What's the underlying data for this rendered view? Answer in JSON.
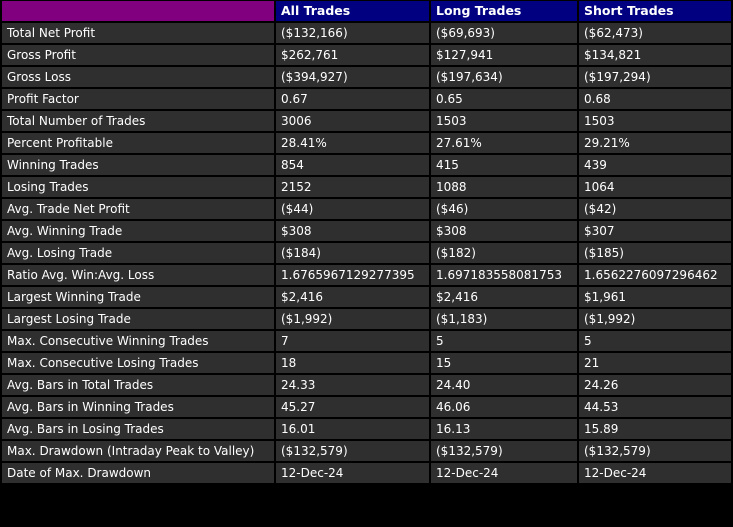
{
  "header": {
    "corner": "",
    "columns": [
      "All Trades",
      "Long Trades",
      "Short Trades"
    ]
  },
  "rows": [
    {
      "label": "Total Net Profit",
      "values": [
        "($132,166)",
        "($69,693)",
        "($62,473)"
      ]
    },
    {
      "label": "Gross Profit",
      "values": [
        "$262,761",
        "$127,941",
        "$134,821"
      ]
    },
    {
      "label": "Gross Loss",
      "values": [
        "($394,927)",
        "($197,634)",
        "($197,294)"
      ]
    },
    {
      "label": "Profit Factor",
      "values": [
        "0.67",
        "0.65",
        "0.68"
      ]
    },
    {
      "label": "Total Number of Trades",
      "values": [
        "3006",
        "1503",
        "1503"
      ]
    },
    {
      "label": "Percent Profitable",
      "values": [
        "28.41%",
        "27.61%",
        "29.21%"
      ]
    },
    {
      "label": "Winning Trades",
      "values": [
        "854",
        "415",
        "439"
      ]
    },
    {
      "label": "Losing Trades",
      "values": [
        "2152",
        "1088",
        "1064"
      ]
    },
    {
      "label": "Avg. Trade Net Profit",
      "values": [
        "($44)",
        "($46)",
        "($42)"
      ]
    },
    {
      "label": "Avg. Winning Trade",
      "values": [
        "$308",
        "$308",
        "$307"
      ]
    },
    {
      "label": "Avg. Losing Trade",
      "values": [
        "($184)",
        "($182)",
        "($185)"
      ]
    },
    {
      "label": "Ratio Avg. Win:Avg. Loss",
      "values": [
        "1.6765967129277395",
        "1.697183558081753",
        "1.6562276097296462"
      ]
    },
    {
      "label": "Largest Winning Trade",
      "values": [
        "$2,416",
        "$2,416",
        "$1,961"
      ]
    },
    {
      "label": "Largest Losing Trade",
      "values": [
        "($1,992)",
        "($1,183)",
        "($1,992)"
      ]
    },
    {
      "label": "Max. Consecutive Winning Trades",
      "values": [
        "7",
        "5",
        "5"
      ]
    },
    {
      "label": "Max. Consecutive Losing Trades",
      "values": [
        "18",
        "15",
        "21"
      ]
    },
    {
      "label": "Avg. Bars in Total Trades",
      "values": [
        "24.33",
        "24.40",
        "24.26"
      ]
    },
    {
      "label": "Avg. Bars in Winning Trades",
      "values": [
        "45.27",
        "46.06",
        "44.53"
      ]
    },
    {
      "label": "Avg. Bars in Losing Trades",
      "values": [
        "16.01",
        "16.13",
        "15.89"
      ]
    },
    {
      "label": "Max. Drawdown (Intraday Peak to Valley)",
      "values": [
        "($132,579)",
        "($132,579)",
        "($132,579)"
      ]
    },
    {
      "label": "Date of Max. Drawdown",
      "values": [
        "12-Dec-24",
        "12-Dec-24",
        "12-Dec-24"
      ]
    }
  ],
  "colors": {
    "page_background": "#000000",
    "header_corner": "#800080",
    "header_background": "#000080",
    "cell_background": "#2f2f2f",
    "text": "#ffffff"
  }
}
